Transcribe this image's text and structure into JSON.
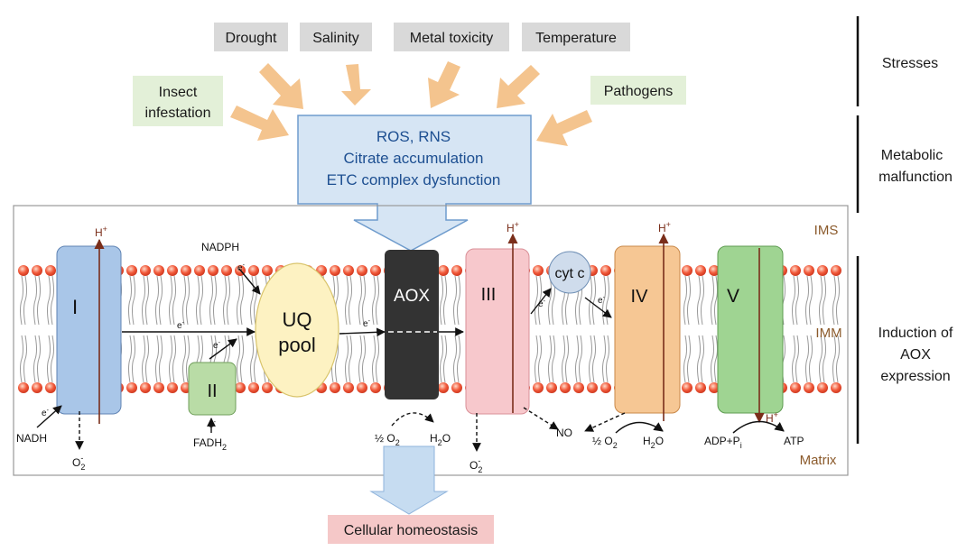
{
  "stresses": {
    "drought": "Drought",
    "salinity": "Salinity",
    "metal": "Metal toxicity",
    "temperature": "Temperature",
    "insect_1": "Insect",
    "insect_2": "infestation",
    "pathogens": "Pathogens"
  },
  "malfunction": {
    "line1": "ROS, RNS",
    "line2": "Citrate accumulation",
    "line3": "ETC complex dysfunction"
  },
  "side_labels": {
    "stresses": "Stresses",
    "metabolic_1": "Metabolic",
    "metabolic_2": "malfunction",
    "induction_1": "Induction of",
    "induction_2": "AOX",
    "induction_3": "expression"
  },
  "compartments": {
    "ims": "IMS",
    "imm": "IMM",
    "matrix": "Matrix"
  },
  "complexes": {
    "c1": "I",
    "c2": "II",
    "uq1": "UQ",
    "uq2": "pool",
    "aox": "AOX",
    "c3": "III",
    "cytc": "cyt c",
    "c4": "IV",
    "c5": "V"
  },
  "molecules": {
    "nadph": "NADPH",
    "nadh": "NADH",
    "fadh": "FADH",
    "fadh_sub": "2",
    "electron": "e",
    "electron_sup": "-",
    "proton": "H",
    "proton_sup": "+",
    "superoxide": "O",
    "superoxide_sub": "2",
    "superoxide_sup": "-",
    "half": "½ O",
    "half_sub": "2",
    "water_1": "H",
    "water_sub": "2",
    "water_2": "O",
    "no": "NO",
    "adp": "ADP+P",
    "adp_sub": "i",
    "atp": "ATP"
  },
  "outcome": "Cellular homeostasis",
  "colors": {
    "stress_gray": "#d9d9d9",
    "stress_green": "#e3f0d8",
    "stress_arrow": "#f4c48e",
    "malfunction_box": "#d6e5f4",
    "malfunction_border": "#6f9ccd",
    "complex_I": "#a9c6e8",
    "complex_II": "#b9dca6",
    "uq_pool": "#fdf2c2",
    "aox": "#333333",
    "complex_III": "#f7c8cc",
    "cyt_c": "#cfdcec",
    "complex_IV": "#f6c794",
    "complex_V": "#9fd492",
    "proton_line": "#7a2e1a",
    "outcome_box": "#f5c8c8",
    "phospholipid_head": "#e8472d"
  }
}
